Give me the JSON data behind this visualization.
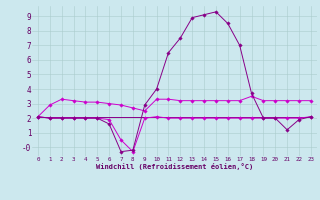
{
  "xlabel": "Windchill (Refroidissement éolien,°C)",
  "bg_color": "#cce8ee",
  "grid_color": "#aacccc",
  "line_color": "#cc00cc",
  "line_color2": "#880088",
  "xlim": [
    -0.5,
    23.5
  ],
  "ylim": [
    -0.6,
    9.7
  ],
  "xticks": [
    0,
    1,
    2,
    3,
    4,
    5,
    6,
    7,
    8,
    9,
    10,
    11,
    12,
    13,
    14,
    15,
    16,
    17,
    18,
    19,
    20,
    21,
    22,
    23
  ],
  "yticks": [
    0,
    1,
    2,
    3,
    4,
    5,
    6,
    7,
    8,
    9
  ],
  "ytick_labels": [
    "-0",
    "1",
    "2",
    "3",
    "4",
    "5",
    "6",
    "7",
    "8",
    "9"
  ],
  "line1_x": [
    0,
    1,
    2,
    3,
    4,
    5,
    6,
    7,
    8,
    9,
    10,
    11,
    12,
    13,
    14,
    15,
    16,
    17,
    18,
    19,
    20,
    21,
    22,
    23
  ],
  "line1_y": [
    2.1,
    2.9,
    3.3,
    3.2,
    3.1,
    3.1,
    3.0,
    2.9,
    2.7,
    2.5,
    3.3,
    3.3,
    3.2,
    3.2,
    3.2,
    3.2,
    3.2,
    3.2,
    3.5,
    3.2,
    3.2,
    3.2,
    3.2,
    3.2
  ],
  "line2_x": [
    0,
    1,
    2,
    3,
    4,
    5,
    6,
    7,
    8,
    9,
    10,
    11,
    12,
    13,
    14,
    15,
    16,
    17,
    18,
    19,
    20,
    21,
    22,
    23
  ],
  "line2_y": [
    2.1,
    2.0,
    2.0,
    2.0,
    2.0,
    2.0,
    1.9,
    0.5,
    -0.3,
    2.0,
    2.1,
    2.0,
    2.0,
    2.0,
    2.0,
    2.0,
    2.0,
    2.0,
    2.0,
    2.0,
    2.0,
    2.0,
    2.0,
    2.1
  ],
  "line3_x": [
    0,
    1,
    2,
    3,
    4,
    5,
    6,
    7,
    8,
    9,
    10,
    11,
    12,
    13,
    14,
    15,
    16,
    17,
    18,
    19,
    20,
    21,
    22,
    23
  ],
  "line3_y": [
    2.1,
    2.0,
    2.0,
    2.0,
    2.0,
    2.0,
    1.6,
    -0.3,
    -0.2,
    2.9,
    4.0,
    6.5,
    7.5,
    8.9,
    9.1,
    9.3,
    8.5,
    7.0,
    3.7,
    2.0,
    2.0,
    1.2,
    1.9,
    2.1
  ],
  "line4_x": [
    0,
    1,
    2,
    3,
    4,
    5,
    6,
    7,
    8,
    9,
    10,
    11,
    12,
    13,
    14,
    15,
    16,
    17,
    18,
    19,
    20,
    21,
    22,
    23
  ],
  "line4_y": [
    2.1,
    2.1,
    2.1,
    2.1,
    2.1,
    2.1,
    2.1,
    2.1,
    2.1,
    2.1,
    2.1,
    2.1,
    2.1,
    2.1,
    2.1,
    2.1,
    2.1,
    2.1,
    2.1,
    2.1,
    2.1,
    2.1,
    2.1,
    2.1
  ]
}
